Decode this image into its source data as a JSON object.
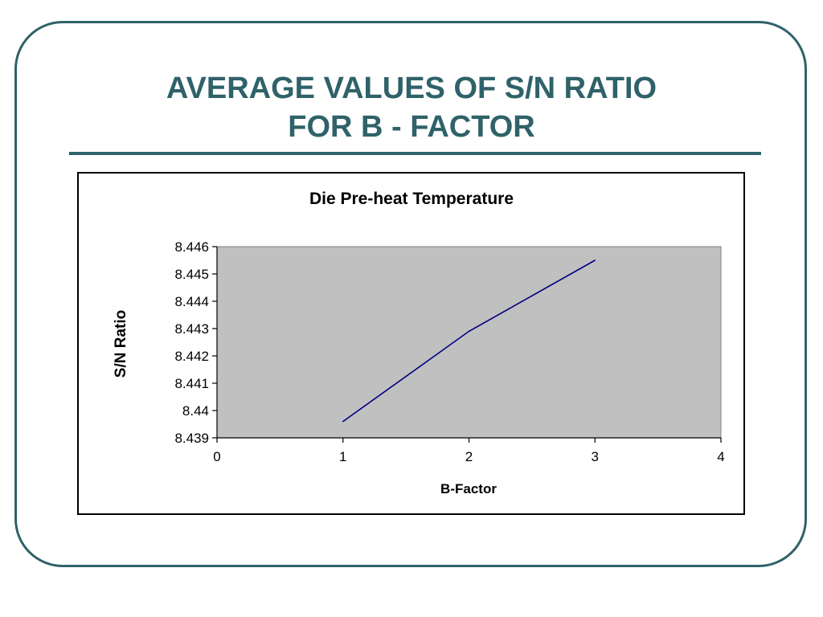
{
  "slide": {
    "title_line1": "AVERAGE VALUES OF S/N RATIO",
    "title_line2": "FOR B - FACTOR"
  },
  "colors": {
    "accent": "#2f6269",
    "plot_background": "#c0c0c0",
    "series_line": "#000080"
  },
  "chart_data": {
    "type": "scatter",
    "title": "Die Pre-heat Temperature",
    "xlabel": "B-Factor",
    "ylabel": "S/N Ratio",
    "xlim": [
      0,
      4
    ],
    "ylim": [
      8.439,
      8.446
    ],
    "x_ticks": [
      "0",
      "1",
      "2",
      "3",
      "4"
    ],
    "y_ticks": [
      "8.439",
      "8.44",
      "8.441",
      "8.442",
      "8.443",
      "8.444",
      "8.445",
      "8.446"
    ],
    "grid": false,
    "legend": "none",
    "series": [
      {
        "x": [
          1,
          2,
          3
        ],
        "y": [
          8.4396,
          8.4429,
          8.4455
        ],
        "connected": true,
        "markers": false
      }
    ]
  }
}
